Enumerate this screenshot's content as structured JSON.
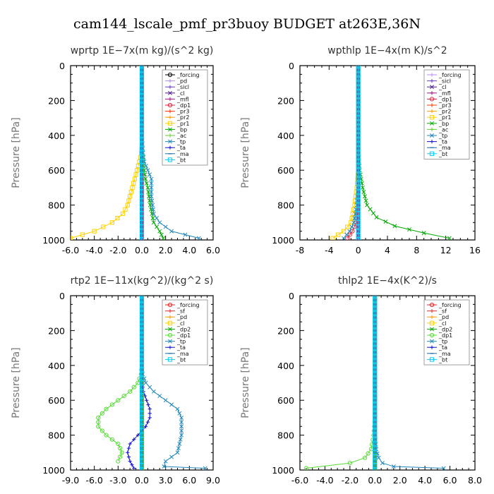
{
  "title": "cam144_lscale_pmf_pr3buoy  BUDGET at263E,36N",
  "chart_data": [
    {
      "type": "line",
      "title": "wprtp   1E−7x(m kg)/(s^2 kg)",
      "ylabel": "Pressure [hPa]",
      "xlim": [
        -6,
        6
      ],
      "ylim": [
        1000,
        0
      ],
      "xticks": [
        "-6.0",
        "-4.0",
        "-2.0",
        "0.0",
        "2.0",
        "4.0",
        "6.0"
      ],
      "yticks": [
        "0",
        "200",
        "400",
        "600",
        "800",
        "1000"
      ],
      "legend_position": "top-right",
      "series": [
        {
          "name": "_forcing",
          "color": "#000000",
          "marker": "o",
          "x": [
            0,
            0,
            0,
            0,
            0,
            0,
            0,
            0,
            0,
            0,
            0
          ],
          "y": [
            0,
            100,
            200,
            300,
            400,
            500,
            600,
            700,
            800,
            900,
            1000
          ]
        },
        {
          "name": "_pd",
          "color": "#b08ee0",
          "marker": "+",
          "x": [
            0,
            0
          ],
          "y": [
            0,
            1000
          ]
        },
        {
          "name": "_sicl",
          "color": "#6a3fc0",
          "marker": "+",
          "x": [
            0,
            0
          ],
          "y": [
            0,
            1000
          ]
        },
        {
          "name": "_cl",
          "color": "#4b1c8a",
          "marker": "x",
          "x": [
            0,
            0
          ],
          "y": [
            0,
            1000
          ]
        },
        {
          "name": "_mfl",
          "color": "#a0148c",
          "marker": "+",
          "x": [
            0,
            0
          ],
          "y": [
            0,
            1000
          ]
        },
        {
          "name": "_dp1",
          "color": "#e0203c",
          "marker": "o",
          "x": [
            0,
            0
          ],
          "y": [
            0,
            1000
          ]
        },
        {
          "name": "_pr3",
          "color": "#ff3300",
          "marker": "+",
          "x": [
            0,
            0
          ],
          "y": [
            0,
            1000
          ]
        },
        {
          "name": "_pr2",
          "color": "#ff9900",
          "marker": "+",
          "x": [
            0,
            0
          ],
          "y": [
            0,
            1000
          ]
        },
        {
          "name": "_pr1",
          "color": "#ffd000",
          "marker": "s",
          "x": [
            0,
            0,
            0,
            -0.05,
            -0.2,
            -0.4,
            -0.6,
            -0.8,
            -1.0,
            -1.2,
            -1.6,
            -2.5,
            -4.0,
            -6.0
          ],
          "y": [
            0,
            300,
            450,
            500,
            550,
            600,
            650,
            700,
            750,
            800,
            850,
            900,
            950,
            990
          ]
        },
        {
          "name": "_bp",
          "color": "#00aa00",
          "marker": "x",
          "x": [
            0,
            0,
            0.05,
            0.1,
            0.2,
            0.3,
            0.5,
            0.7,
            1.0,
            1.5,
            1.8
          ],
          "y": [
            0,
            400,
            500,
            550,
            600,
            650,
            700,
            800,
            900,
            950,
            990
          ]
        },
        {
          "name": "_ac",
          "color": "#66cc33",
          "marker": "+",
          "x": [
            0,
            0
          ],
          "y": [
            0,
            1000
          ]
        },
        {
          "name": "_tp",
          "color": "#2288bb",
          "marker": "x",
          "x": [
            0,
            0,
            0.05,
            0.1,
            0.2,
            0.5,
            0.8,
            0.8,
            1.0,
            1.5,
            2.5,
            4.8
          ],
          "y": [
            0,
            400,
            450,
            500,
            550,
            600,
            650,
            750,
            850,
            900,
            950,
            990
          ]
        },
        {
          "name": "_ta",
          "color": "#1010cc",
          "marker": "+",
          "x": [
            0,
            0
          ],
          "y": [
            0,
            1000
          ]
        },
        {
          "name": "_ma",
          "color": "#1e6aa8",
          "marker": "-",
          "x": [
            0,
            0
          ],
          "y": [
            0,
            1000
          ]
        },
        {
          "name": "_bt",
          "color": "#00ccff",
          "marker": "s",
          "x": [
            0,
            0
          ],
          "y": [
            0,
            1000
          ]
        }
      ]
    },
    {
      "type": "line",
      "title": "wpthlp   1E−4x(m K)/s^2",
      "ylabel": "Pressure [hPa]",
      "xlim": [
        -8,
        16
      ],
      "ylim": [
        1000,
        0
      ],
      "xticks": [
        "-8",
        "-4",
        "0",
        "4",
        "8",
        "12",
        "16"
      ],
      "yticks": [
        "0",
        "200",
        "400",
        "600",
        "800",
        "1000"
      ],
      "legend_position": "top-right",
      "series": [
        {
          "name": "_forcing",
          "color": "#bb88ff",
          "marker": "+",
          "x": [
            0,
            0
          ],
          "y": [
            0,
            1000
          ]
        },
        {
          "name": "_sicl",
          "color": "#6a3fc0",
          "marker": "+",
          "x": [
            0,
            0
          ],
          "y": [
            0,
            1000
          ]
        },
        {
          "name": "_cl",
          "color": "#4b1c8a",
          "marker": "x",
          "x": [
            0,
            0
          ],
          "y": [
            0,
            1000
          ]
        },
        {
          "name": "_mfl",
          "color": "#a0148c",
          "marker": "+",
          "x": [
            0,
            0
          ],
          "y": [
            0,
            1000
          ]
        },
        {
          "name": "_dp1",
          "color": "#e0203c",
          "marker": "o",
          "x": [
            0,
            0,
            0,
            -0.3,
            -0.8,
            -1.5
          ],
          "y": [
            0,
            700,
            800,
            900,
            950,
            990
          ]
        },
        {
          "name": "_pr3",
          "color": "#ff3300",
          "marker": "+",
          "x": [
            0,
            0
          ],
          "y": [
            0,
            1000
          ]
        },
        {
          "name": "_pr2",
          "color": "#ff9900",
          "marker": "+",
          "x": [
            0,
            0
          ],
          "y": [
            0,
            1000
          ]
        },
        {
          "name": "_pr1",
          "color": "#ffd000",
          "marker": "s",
          "x": [
            0,
            0,
            -0.2,
            -0.5,
            -1.0,
            -2.0,
            -3.5
          ],
          "y": [
            0,
            600,
            700,
            800,
            900,
            950,
            990
          ]
        },
        {
          "name": "_bp",
          "color": "#00aa00",
          "marker": "x",
          "x": [
            0,
            0,
            0.2,
            0.6,
            1.2,
            2.5,
            5.0,
            9.0,
            12.5
          ],
          "y": [
            0,
            500,
            600,
            700,
            800,
            870,
            920,
            960,
            990
          ]
        },
        {
          "name": "_ac",
          "color": "#66cc33",
          "marker": "+",
          "x": [
            0,
            0
          ],
          "y": [
            0,
            1000
          ]
        },
        {
          "name": "_tp",
          "color": "#2288bb",
          "marker": "x",
          "x": [
            0,
            0,
            -0.2,
            -0.6,
            -1.2,
            -2.0
          ],
          "y": [
            0,
            700,
            800,
            900,
            950,
            990
          ]
        },
        {
          "name": "_ta",
          "color": "#1010cc",
          "marker": "+",
          "x": [
            0,
            0
          ],
          "y": [
            0,
            1000
          ]
        },
        {
          "name": "_ma",
          "color": "#1e6aa8",
          "marker": "-",
          "x": [
            0,
            0
          ],
          "y": [
            0,
            1000
          ]
        },
        {
          "name": "_bt",
          "color": "#00ccff",
          "marker": "s",
          "x": [
            0,
            0
          ],
          "y": [
            0,
            1000
          ]
        }
      ]
    },
    {
      "type": "line",
      "title": "rtp2   1E−11x(kg^2)/(kg^2 s)",
      "ylabel": "Pressure [hPa]",
      "xlim": [
        -9,
        9
      ],
      "ylim": [
        1000,
        0
      ],
      "xticks": [
        "-9.0",
        "-6.0",
        "-3.0",
        "0.0",
        "3.0",
        "6.0",
        "9.0"
      ],
      "yticks": [
        "0",
        "200",
        "400",
        "600",
        "800",
        "1000"
      ],
      "legend_position": "top-right",
      "series": [
        {
          "name": "_forcing",
          "color": "#ee2222",
          "marker": "o",
          "x": [
            0,
            0,
            0,
            0,
            0,
            0,
            0,
            0,
            0,
            0,
            0
          ],
          "y": [
            0,
            100,
            200,
            300,
            400,
            500,
            600,
            700,
            800,
            900,
            1000
          ]
        },
        {
          "name": "_sf",
          "color": "#dd3333",
          "marker": "+",
          "x": [
            0,
            0
          ],
          "y": [
            0,
            1000
          ]
        },
        {
          "name": "_pd",
          "color": "#ff9900",
          "marker": "+",
          "x": [
            0,
            0
          ],
          "y": [
            0,
            1000
          ]
        },
        {
          "name": "_cl",
          "color": "#ffd000",
          "marker": "s",
          "x": [
            0,
            0
          ],
          "y": [
            0,
            1000
          ]
        },
        {
          "name": "_dp2",
          "color": "#00aa00",
          "marker": "x",
          "x": [
            0,
            0
          ],
          "y": [
            0,
            1000
          ]
        },
        {
          "name": "_dp1",
          "color": "#55dd33",
          "marker": "o",
          "x": [
            0,
            0,
            -0.1,
            -0.5,
            -1.5,
            -3.0,
            -4.5,
            -5.5,
            -5.5,
            -4.5,
            -3.0,
            -2.5,
            -3.0
          ],
          "y": [
            0,
            400,
            450,
            500,
            550,
            600,
            650,
            700,
            750,
            800,
            850,
            900,
            950
          ]
        },
        {
          "name": "_tp",
          "color": "#2288bb",
          "marker": "x",
          "x": [
            0,
            0,
            0.1,
            0.5,
            1.5,
            3.0,
            4.5,
            5.0,
            5.0,
            4.5,
            3.0,
            2.8,
            8.0
          ],
          "y": [
            0,
            400,
            450,
            500,
            550,
            600,
            650,
            700,
            800,
            900,
            950,
            980,
            990
          ]
        },
        {
          "name": "_ta",
          "color": "#1010cc",
          "marker": "+",
          "x": [
            0,
            0,
            0.2,
            0.6,
            1.0,
            1.0,
            0.5,
            -0.5,
            -1.5,
            -1.8,
            -1.5,
            -1.0
          ],
          "y": [
            0,
            500,
            550,
            600,
            650,
            700,
            750,
            800,
            850,
            900,
            950,
            990
          ]
        },
        {
          "name": "_ma",
          "color": "#1e6aa8",
          "marker": "-",
          "x": [
            0,
            0
          ],
          "y": [
            0,
            1000
          ]
        },
        {
          "name": "_bt",
          "color": "#00ccff",
          "marker": "s",
          "x": [
            0,
            0
          ],
          "y": [
            0,
            1000
          ]
        }
      ]
    },
    {
      "type": "line",
      "title": "thlp2   1E−4x(K^2)/s",
      "ylabel": "Pressure [hPa]",
      "xlim": [
        -6,
        8
      ],
      "ylim": [
        1000,
        0
      ],
      "xticks": [
        "-6.0",
        "-4.0",
        "-2.0",
        "0.0",
        "2.0",
        "4.0",
        "6.0",
        "8.0"
      ],
      "yticks": [
        "0",
        "200",
        "400",
        "600",
        "800",
        "1000"
      ],
      "legend_position": "top-right",
      "series": [
        {
          "name": "_forcing",
          "color": "#ee2222",
          "marker": "o",
          "x": [
            0,
            0,
            0,
            0,
            0,
            0,
            0,
            0,
            0,
            0,
            0
          ],
          "y": [
            0,
            100,
            200,
            300,
            400,
            500,
            600,
            700,
            800,
            900,
            1000
          ]
        },
        {
          "name": "_sf",
          "color": "#dd3333",
          "marker": "+",
          "x": [
            0,
            0
          ],
          "y": [
            0,
            1000
          ]
        },
        {
          "name": "_pd",
          "color": "#ff9900",
          "marker": "+",
          "x": [
            0,
            0
          ],
          "y": [
            0,
            1000
          ]
        },
        {
          "name": "_cl",
          "color": "#ffd000",
          "marker": "s",
          "x": [
            0,
            0
          ],
          "y": [
            0,
            1000
          ]
        },
        {
          "name": "_dp2",
          "color": "#00aa00",
          "marker": "x",
          "x": [
            0,
            0
          ],
          "y": [
            0,
            1000
          ]
        },
        {
          "name": "_dp1",
          "color": "#55dd33",
          "marker": "o",
          "x": [
            0,
            0,
            -0.1,
            -0.3,
            -0.8,
            -2.0,
            -5.5
          ],
          "y": [
            0,
            700,
            800,
            880,
            930,
            960,
            990
          ]
        },
        {
          "name": "_tp",
          "color": "#2288bb",
          "marker": "x",
          "x": [
            0,
            0,
            0.1,
            0.3,
            0.6,
            1.5,
            5.5
          ],
          "y": [
            0,
            800,
            880,
            930,
            960,
            980,
            990
          ]
        },
        {
          "name": "_ta",
          "color": "#1010cc",
          "marker": "+",
          "x": [
            0,
            0
          ],
          "y": [
            0,
            1000
          ]
        },
        {
          "name": "_ma",
          "color": "#1e6aa8",
          "marker": "-",
          "x": [
            0,
            0
          ],
          "y": [
            0,
            1000
          ]
        },
        {
          "name": "_bt",
          "color": "#00ccff",
          "marker": "s",
          "x": [
            0,
            0
          ],
          "y": [
            0,
            1000
          ]
        }
      ]
    }
  ]
}
